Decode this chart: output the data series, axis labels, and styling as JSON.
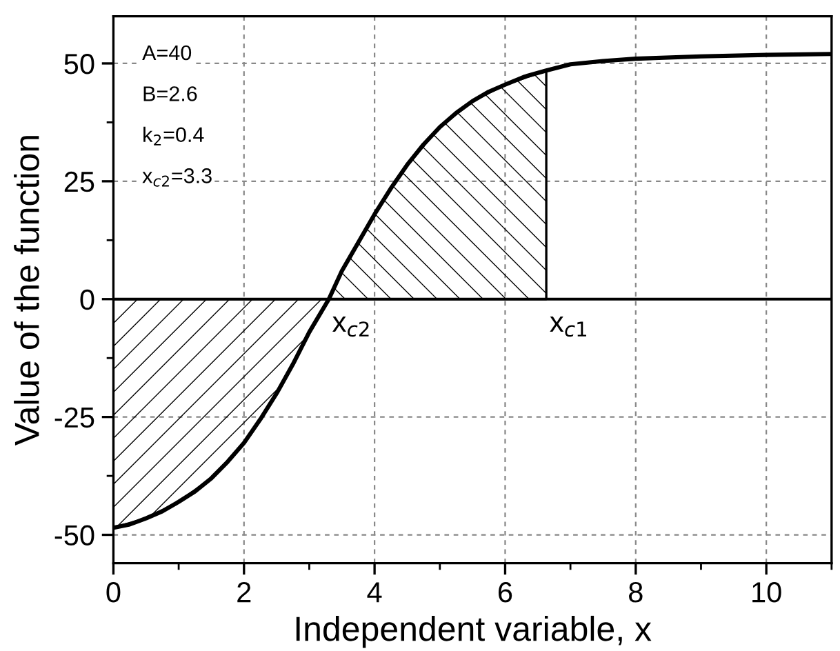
{
  "chart_data": {
    "type": "line",
    "xlabel": "Independent variable, x",
    "ylabel": "Value of the function",
    "xlim": [
      0,
      11
    ],
    "ylim": [
      -56,
      60
    ],
    "xticks": [
      0,
      2,
      4,
      6,
      8,
      10
    ],
    "yticks": [
      -50,
      -25,
      0,
      25,
      50
    ],
    "grid": true,
    "legend": false,
    "marker": "none",
    "line_style": "solid",
    "series": [
      {
        "type": "area",
        "color": "#000000",
        "x": [
          0,
          0.5,
          1,
          1.5,
          2,
          2.5,
          3,
          3.3
        ],
        "values": [
          -48.5,
          -46.5,
          -43,
          -38,
          -30.5,
          -20,
          -7,
          0
        ]
      },
      {
        "type": "area",
        "color": "#000000",
        "x": [
          3.3,
          3.5,
          4,
          4.5,
          5,
          5.5,
          6,
          6.63
        ],
        "values": [
          0,
          6,
          18,
          28.5,
          36.5,
          42,
          45.5,
          48.5
        ]
      },
      {
        "color": "#000000",
        "x": [
          0,
          0.25,
          0.5,
          0.75,
          1,
          1.25,
          1.5,
          1.75,
          2,
          2.25,
          2.5,
          2.75,
          3,
          3.3,
          3.5,
          3.75,
          4,
          4.25,
          4.5,
          4.75,
          5,
          5.25,
          5.5,
          5.75,
          6,
          6.3,
          6.63,
          7,
          7.5,
          8,
          9,
          10,
          11
        ],
        "values": [
          -48.5,
          -47.8,
          -46.5,
          -45,
          -43,
          -40.8,
          -38,
          -34.5,
          -30.5,
          -25.5,
          -20,
          -13.8,
          -7,
          0,
          6,
          12,
          18,
          23.5,
          28.5,
          32.8,
          36.5,
          39.5,
          42,
          44,
          45.5,
          47.2,
          48.5,
          49.8,
          50.5,
          51,
          51.5,
          51.8,
          52
        ]
      }
    ],
    "ref_lines": [
      {
        "axis": "y",
        "value": 0,
        "color": "#000000",
        "line_style": "solid"
      }
    ],
    "annotations": [
      {
        "text": "x$_{c2}$",
        "x": 3.3,
        "y": 0
      },
      {
        "text": "x$_{c1}$",
        "x": 6.63,
        "y": 0
      },
      "A=40",
      "B=2.6",
      "k$_{2}$=0.4",
      "x$_{c2}$=3.3"
    ]
  }
}
